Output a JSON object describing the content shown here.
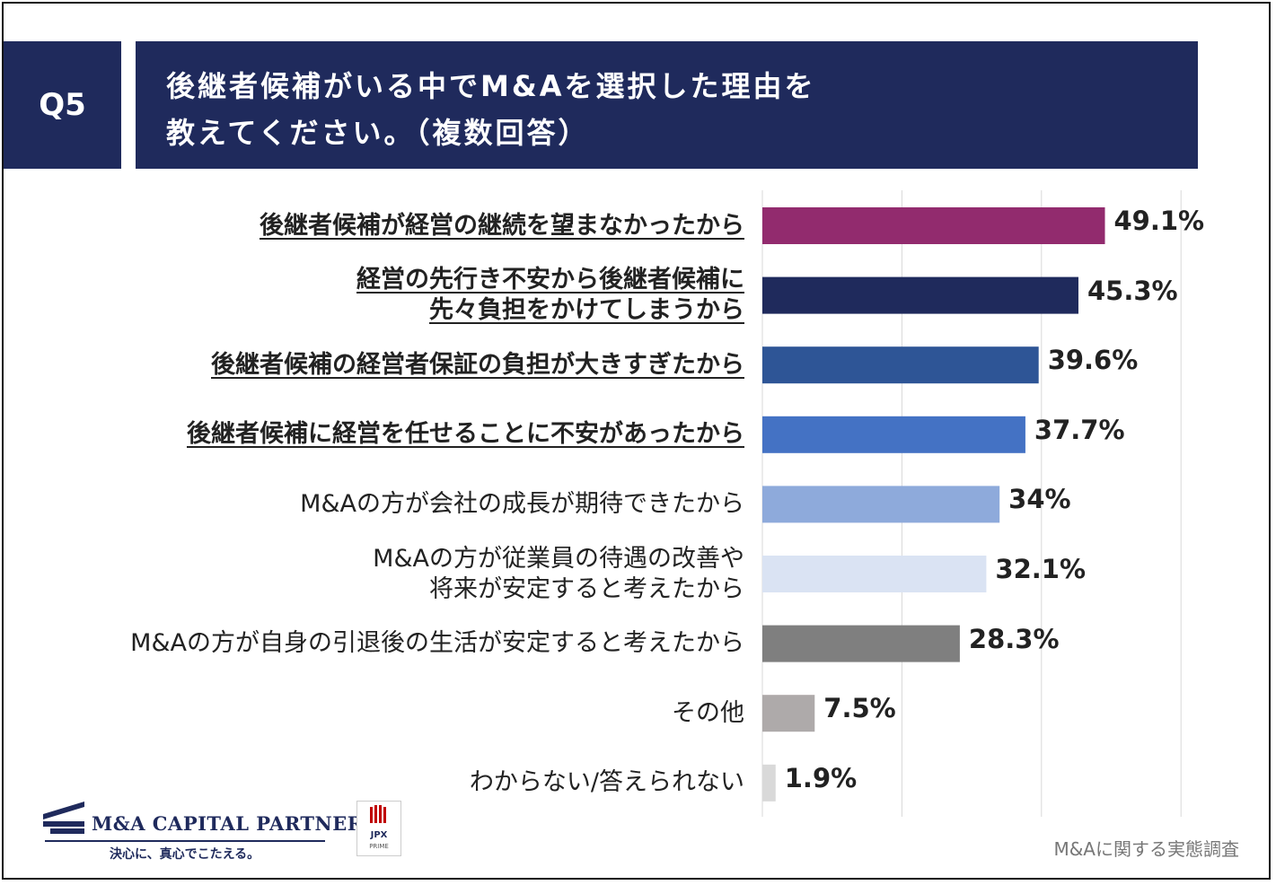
{
  "header": {
    "question_number": "Q5",
    "title_line1": "後継者候補がいる中でM&Aを選択した理由を",
    "title_line2": "教えてください。（複数回答）"
  },
  "chart_data": {
    "type": "bar",
    "orientation": "horizontal",
    "unit": "%",
    "xlim": [
      0,
      60
    ],
    "grid": true,
    "categories": [
      {
        "lines": [
          "後継者候補が経営の継続を望まなかったから"
        ],
        "highlight": true
      },
      {
        "lines": [
          "経営の先行き不安から後継者候補に",
          "先々負担をかけてしまうから"
        ],
        "highlight": true
      },
      {
        "lines": [
          "後継者候補の経営者保証の負担が大きすぎたから"
        ],
        "highlight": true
      },
      {
        "lines": [
          "後継者候補に経営を任せることに不安があったから"
        ],
        "highlight": true
      },
      {
        "lines": [
          "M&Aの方が会社の成長が期待できたから"
        ],
        "highlight": false
      },
      {
        "lines": [
          "M&Aの方が従業員の待遇の改善や",
          "将来が安定すると考えたから"
        ],
        "highlight": false
      },
      {
        "lines": [
          "M&Aの方が自身の引退後の生活が安定すると考えたから"
        ],
        "highlight": false
      },
      {
        "lines": [
          "その他"
        ],
        "highlight": false
      },
      {
        "lines": [
          "わからない/答えられない"
        ],
        "highlight": false
      }
    ],
    "values": [
      49.1,
      45.3,
      39.6,
      37.7,
      34,
      32.1,
      28.3,
      7.5,
      1.9
    ],
    "value_labels": [
      "49.1%",
      "45.3%",
      "39.6%",
      "37.7%",
      "34%",
      "32.1%",
      "28.3%",
      "7.5%",
      "1.9%"
    ],
    "colors": [
      "#922b6e",
      "#1f2a5c",
      "#2e5596",
      "#4472c4",
      "#8eaadb",
      "#dae3f3",
      "#7f7f7f",
      "#aeaaaa",
      "#d9d9d9"
    ]
  },
  "footer": {
    "company_name": "M&A CAPITAL PARTNERS",
    "tagline": "決心に、真心でこたえる。",
    "jpx_label": "JPX",
    "jpx_sub": "PRIME",
    "source": "M&Aに関する実態調査"
  },
  "colors": {
    "header_bg": "#1f2a5c",
    "header_text": "#ffffff"
  }
}
